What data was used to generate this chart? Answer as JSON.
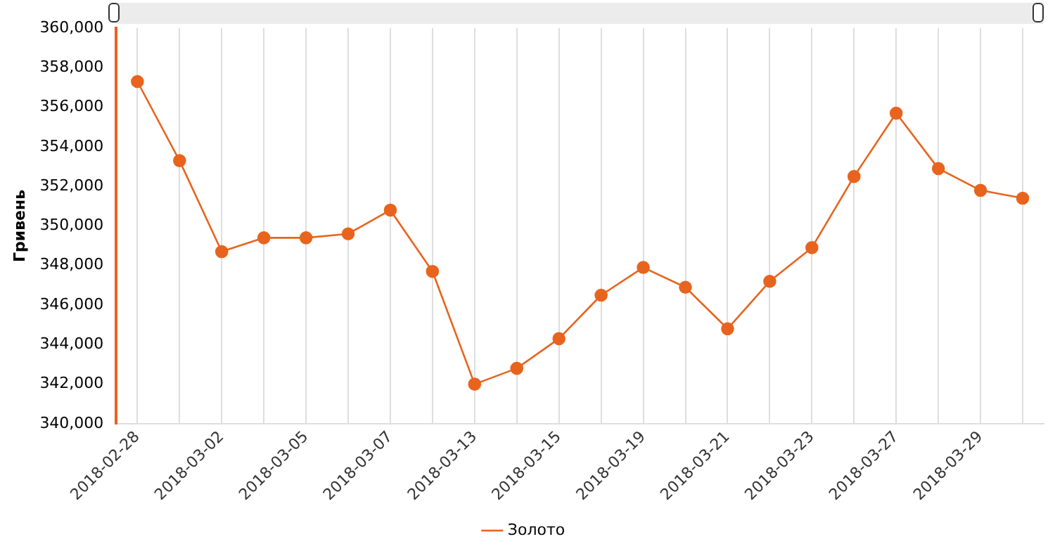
{
  "chart_data": {
    "type": "line",
    "ylabel": "Гривень",
    "categories": [
      "2018-02-28",
      null,
      "2018-03-02",
      null,
      "2018-03-05",
      null,
      "2018-03-07",
      null,
      "2018-03-13",
      null,
      "2018-03-15",
      null,
      "2018-03-19",
      null,
      "2018-03-21",
      null,
      "2018-03-23",
      null,
      "2018-03-27",
      null,
      "2018-03-29",
      null
    ],
    "series": [
      {
        "name": "Золото",
        "color": "#e8641e",
        "values": [
          357300,
          353300,
          348700,
          349400,
          349400,
          349600,
          350800,
          347700,
          342000,
          342800,
          344300,
          346500,
          347900,
          346900,
          344800,
          347200,
          348900,
          352500,
          355700,
          352900,
          351800,
          351400
        ]
      }
    ],
    "ylim": [
      340000,
      360000
    ],
    "yticks": [
      {
        "value": 340000,
        "label": "340,000"
      },
      {
        "value": 342000,
        "label": "342,000"
      },
      {
        "value": 344000,
        "label": "344,000"
      },
      {
        "value": 346000,
        "label": "346,000"
      },
      {
        "value": 348000,
        "label": "348,000"
      },
      {
        "value": 350000,
        "label": "350,000"
      },
      {
        "value": 352000,
        "label": "352,000"
      },
      {
        "value": 354000,
        "label": "354,000"
      },
      {
        "value": 356000,
        "label": "356,000"
      },
      {
        "value": 358000,
        "label": "358,000"
      },
      {
        "value": 360000,
        "label": "360,000"
      }
    ],
    "grid": "x",
    "legend": "bottom",
    "marker": "circle",
    "line_style": "solid"
  }
}
